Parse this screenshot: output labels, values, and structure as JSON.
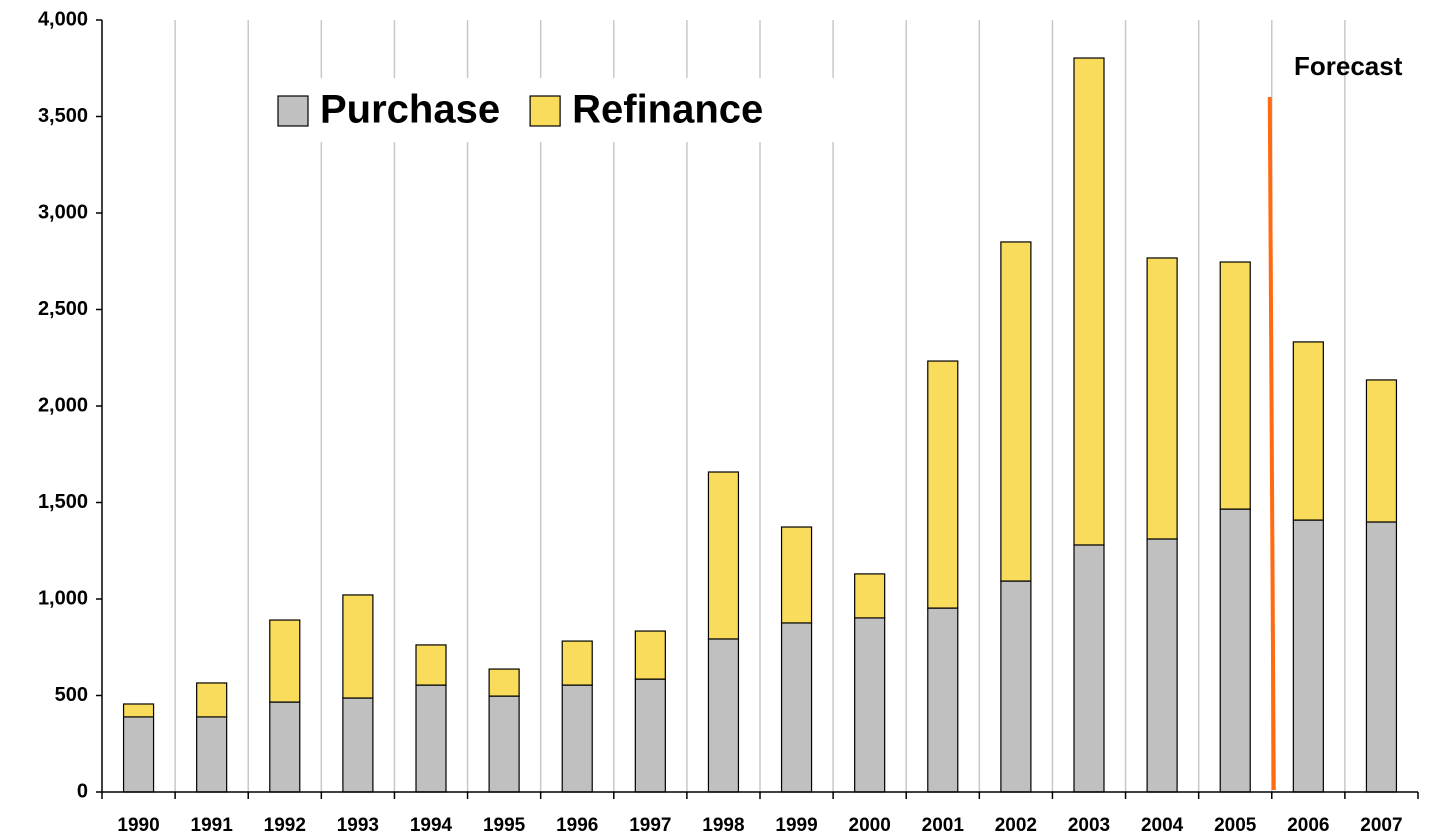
{
  "chart_data": {
    "type": "stacked-bar",
    "categories": [
      "1990",
      "1991",
      "1992",
      "1993",
      "1994",
      "1995",
      "1996",
      "1997",
      "1998",
      "1999",
      "2000",
      "2001",
      "2002",
      "2003",
      "2004",
      "2005",
      "2006",
      "2007"
    ],
    "series": [
      {
        "name": "Purchase",
        "color": "#c0c0c0",
        "values": [
          389,
          389,
          466,
          487,
          554,
          497,
          554,
          585,
          793,
          876,
          902,
          953,
          1093,
          1280,
          1311,
          1466,
          1409,
          1399
        ]
      },
      {
        "name": "Refinance",
        "color": "#f9dc5c",
        "values": [
          67,
          176,
          425,
          534,
          208,
          140,
          228,
          249,
          865,
          497,
          228,
          1280,
          1757,
          2523,
          1456,
          1280,
          923,
          736
        ]
      }
    ],
    "ylim": [
      0,
      4000
    ],
    "yticks": [
      0,
      500,
      {
        "value": 1000,
        "label": "1,000"
      },
      {
        "value": 1500,
        "label": "1,500"
      },
      {
        "value": 2000,
        "label": "2,000"
      },
      {
        "value": 2500,
        "label": "2,500"
      },
      {
        "value": 3000,
        "label": "3,000"
      },
      {
        "value": 3500,
        "label": "3,500"
      },
      {
        "value": 4000,
        "label": "4,000"
      }
    ],
    "grid": "x",
    "legend": "top-left",
    "annotation": {
      "text": "Forecast",
      "color": "#ff6a13"
    }
  }
}
